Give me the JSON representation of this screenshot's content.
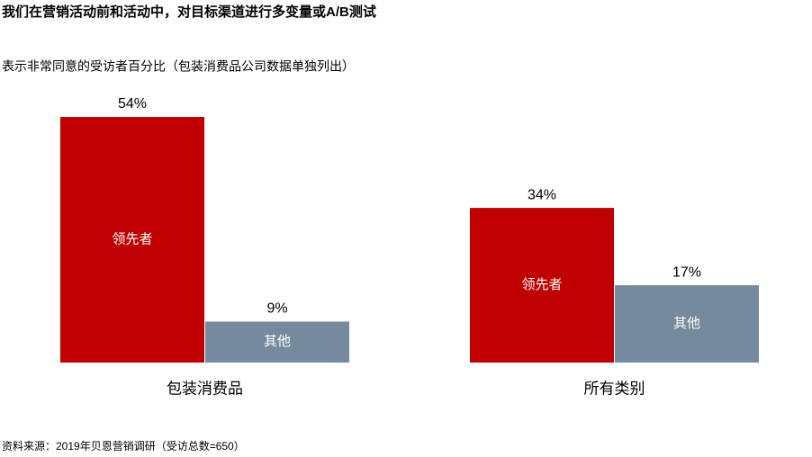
{
  "chart_data": {
    "type": "bar",
    "title": "我们在营销活动前和活动中，对目标渠道进行多变量或A/B测试",
    "subtitle": "表示非常同意的受访者百分比（包装消费品公司数据单独列出）",
    "source": "资料来源：2019年贝恩营销调研（受访总数=650）",
    "categories": [
      "包装消费品",
      "所有类别"
    ],
    "series": [
      {
        "name": "领先者",
        "color": "#c00000",
        "values": [
          54,
          34
        ],
        "value_labels": [
          "54%",
          "34%"
        ]
      },
      {
        "name": "其他",
        "color": "#768a9d",
        "values": [
          9,
          17
        ],
        "value_labels": [
          "9%",
          "17%"
        ]
      }
    ]
  }
}
